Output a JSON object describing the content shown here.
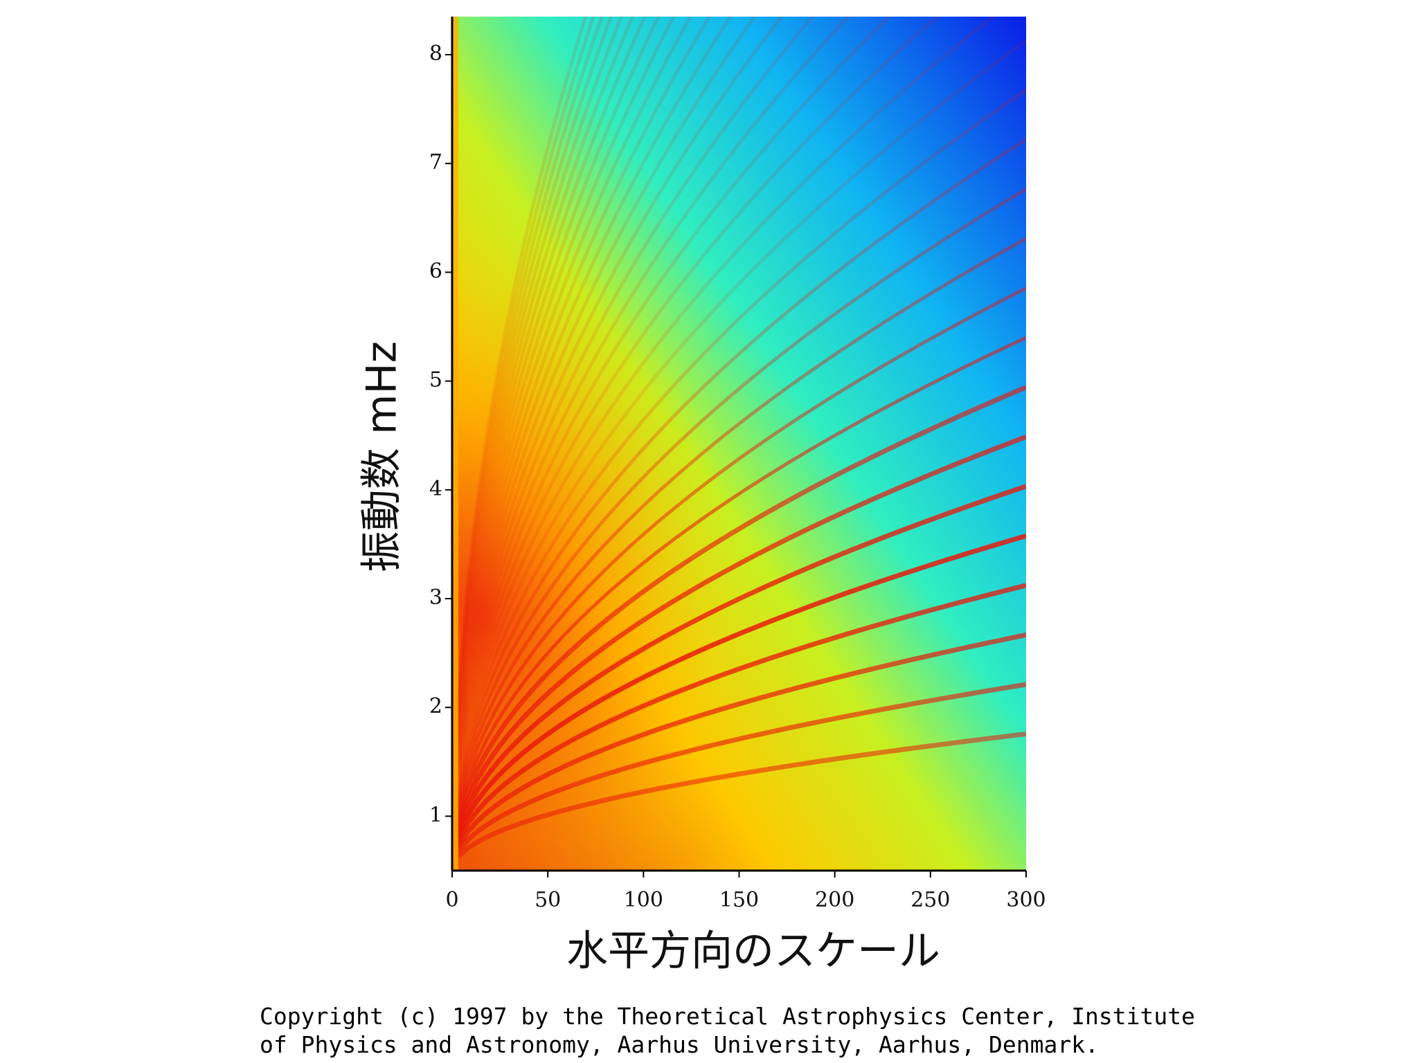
{
  "chart_data": {
    "type": "heatmap",
    "xlabel": "水平方向のスケール",
    "ylabel": "振動数 mHz",
    "xlim": [
      0,
      300
    ],
    "xticks": [
      0,
      50,
      100,
      150,
      200,
      250,
      300
    ],
    "ylim": [
      0.5,
      8.35
    ],
    "yticks": [
      1,
      2,
      3,
      4,
      5,
      6,
      7,
      8
    ]
  },
  "footer": {
    "lines": [
      "Copyright (c) 1997 by the Theoretical Astrophysics Center, Institute",
      "of Physics and Astronomy, Aarhus University, Aarhus, Denmark."
    ]
  }
}
